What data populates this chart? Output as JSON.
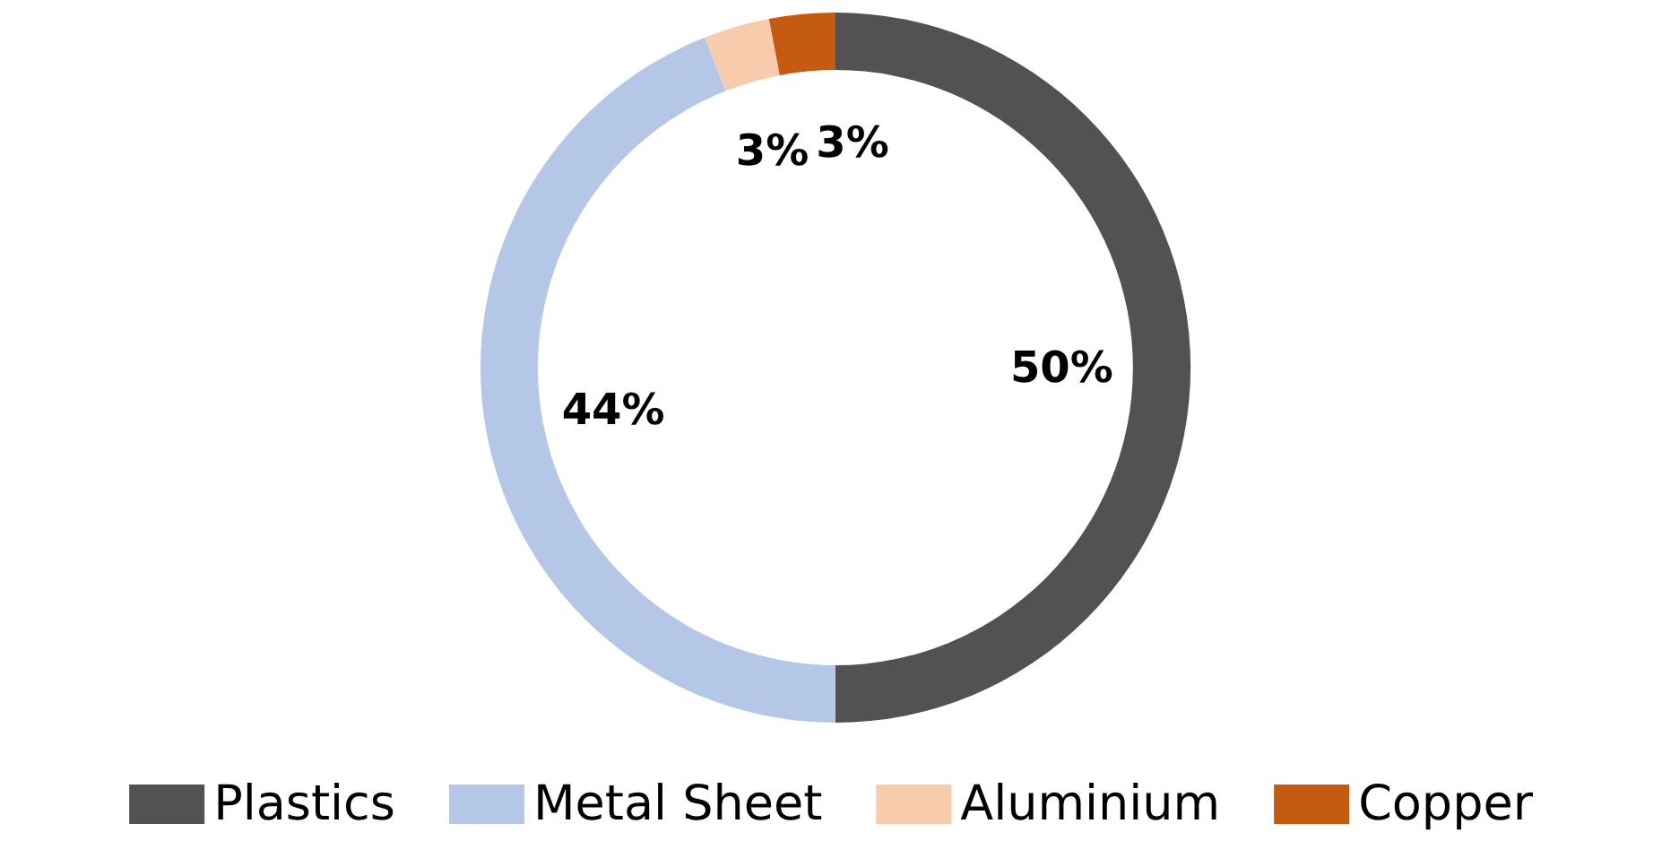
{
  "chart_data": {
    "type": "donut",
    "categories": [
      "Plastics",
      "Metal Sheet",
      "Aluminium",
      "Copper"
    ],
    "values": [
      50,
      44,
      3,
      3
    ],
    "colors": [
      "#525252",
      "#b4c7e7",
      "#f8cbad",
      "#c55a11"
    ],
    "value_labels": [
      "50%",
      "44%",
      "3%",
      "3%"
    ],
    "legend": "bottom"
  }
}
